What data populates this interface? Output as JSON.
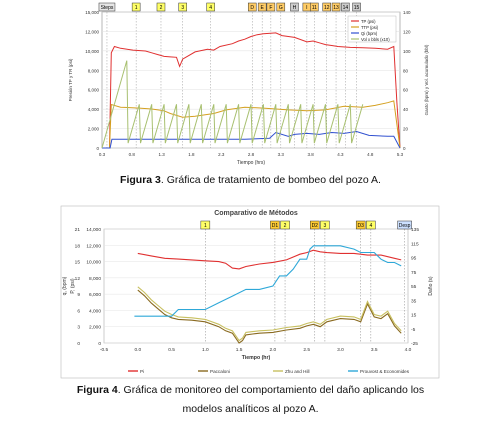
{
  "figure3": {
    "caption_label": "Figura 3",
    "caption_text": ". Gráfica de tratamiento de bombeo del pozo A.",
    "stage_markers": [
      {
        "label": "Steps",
        "color": "#e6e6e6",
        "x": 0.28
      },
      {
        "label": "1",
        "color": "#ffff66",
        "x": 0.75
      },
      {
        "label": "2",
        "color": "#ffff66",
        "x": 1.15
      },
      {
        "label": "3",
        "color": "#ffff66",
        "x": 1.5
      },
      {
        "label": "4",
        "color": "#ffff66",
        "x": 1.95
      },
      {
        "label": "D",
        "color": "#ffcc66",
        "x": 2.62
      },
      {
        "label": "E",
        "color": "#ffcc66",
        "x": 2.78
      },
      {
        "label": "F",
        "color": "#ffcc66",
        "x": 2.92
      },
      {
        "label": "G",
        "color": "#ffcc66",
        "x": 3.08
      },
      {
        "label": "H",
        "color": "#cccccc",
        "x": 3.3
      },
      {
        "label": "I",
        "color": "#ffcc66",
        "x": 3.5
      },
      {
        "label": "11",
        "color": "#ffcc66",
        "x": 3.62
      },
      {
        "label": "12",
        "color": "#ffcc66",
        "x": 3.82
      },
      {
        "label": "13",
        "color": "#ffcc66",
        "x": 3.97
      },
      {
        "label": "14",
        "color": "#cccccc",
        "x": 4.12
      },
      {
        "label": "15",
        "color": "#cccccc",
        "x": 4.3
      }
    ],
    "legend": [
      "TP (psi)",
      "TTP (psi)",
      "Qi (bpm)",
      "Vol x bbls (x10)"
    ],
    "chart_data": {
      "type": "line",
      "xlabel": "Tiempo (hrs)",
      "ylabel_left": "Presión TP y TR (psi)",
      "ylabel_right": "Gasto (bpm) y Vol. acumulado (bbl)",
      "xlim": [
        0.2,
        5.0
      ],
      "ylim_left": [
        0,
        15000
      ],
      "ylim_right": [
        0,
        140
      ],
      "xticks": [
        "0.3",
        "0.8",
        "1.3",
        "1.8",
        "2.3",
        "2.8",
        "3.3",
        "3.8",
        "4.3",
        "4.8",
        "5.3"
      ],
      "yticks_left": [
        "0",
        "2,000",
        "4,000",
        "6,000",
        "8,000",
        "10,000",
        "12,000",
        "15,000"
      ],
      "yticks_right": [
        "0",
        "20",
        "40",
        "60",
        "80",
        "100",
        "120",
        "140"
      ],
      "series": [
        {
          "name": "TP (psi)",
          "color": "#e03030",
          "axis": "left",
          "x": [
            0.2,
            0.32,
            0.35,
            0.4,
            0.5,
            0.7,
            0.9,
            1.0,
            1.1,
            1.2,
            1.3,
            1.4,
            1.45,
            1.5,
            1.7,
            1.9,
            2.0,
            2.1,
            2.3,
            2.4,
            2.5,
            2.6,
            2.7,
            2.8,
            3.0,
            3.1,
            3.2,
            3.3,
            3.5,
            3.6,
            3.7,
            3.8,
            3.9,
            4.0,
            4.2,
            4.4,
            4.6,
            4.8,
            4.9,
            4.95,
            5.0
          ],
          "y": [
            0,
            0,
            10500,
            11200,
            11000,
            10800,
            10700,
            10500,
            10300,
            10100,
            10050,
            10000,
            9000,
            9800,
            10600,
            10900,
            10800,
            11200,
            11500,
            11800,
            12000,
            12300,
            12500,
            12600,
            12700,
            12400,
            12300,
            12200,
            11700,
            11800,
            11600,
            11400,
            11300,
            11200,
            11100,
            11050,
            11000,
            10900,
            11200,
            5000,
            0
          ]
        },
        {
          "name": "TTP (psi)",
          "color": "#d4a020",
          "axis": "left",
          "x": [
            0.2,
            0.32,
            0.35,
            0.5,
            0.8,
            1.0,
            1.1,
            1.2,
            1.3,
            1.4,
            1.5,
            1.7,
            2.0,
            2.2,
            2.5,
            2.8,
            3.0,
            3.2,
            3.5,
            3.8,
            4.1,
            4.4,
            4.6,
            4.8,
            4.9,
            5.0
          ],
          "y": [
            0,
            0,
            4800,
            4500,
            4400,
            4300,
            4200,
            4100,
            3800,
            3600,
            3400,
            3500,
            3800,
            4200,
            4500,
            4400,
            4300,
            4200,
            4100,
            4200,
            4600,
            4500,
            4700,
            5000,
            5200,
            0
          ]
        },
        {
          "name": "Qi (bpm)",
          "color": "#3050d0",
          "axis": "right",
          "x": [
            0.2,
            0.33,
            0.36,
            0.5,
            1.0,
            1.5,
            2.0,
            2.5,
            2.9,
            3.0,
            3.2,
            3.3,
            3.5,
            3.7,
            3.9,
            4.1,
            4.3,
            4.5,
            4.8,
            4.9,
            5.0
          ],
          "y": [
            0,
            0,
            9,
            9,
            9,
            9,
            9,
            9,
            10,
            16,
            12,
            14,
            15,
            14,
            16,
            15,
            17,
            13,
            12,
            12,
            0
          ]
        },
        {
          "name": "Vol x bbls (x10)",
          "color": "#a8c070",
          "axis": "right",
          "x": [
            0.2,
            0.4,
            0.6,
            0.62,
            0.8,
            0.82,
            1.0,
            1.02,
            1.2,
            1.22,
            1.4,
            1.42,
            1.6,
            1.62,
            1.8,
            1.82,
            2.0,
            2.02,
            2.2,
            2.22,
            2.4,
            2.42,
            2.6,
            2.62,
            2.8,
            2.82,
            3.0,
            3.02,
            3.2,
            3.22,
            3.4,
            3.42,
            3.6,
            3.62,
            3.8,
            3.82,
            4.0,
            4.02,
            4.2,
            4.22,
            4.4
          ],
          "y": [
            0,
            45,
            90,
            5,
            45,
            5,
            45,
            5,
            45,
            5,
            45,
            5,
            45,
            5,
            45,
            5,
            45,
            5,
            45,
            5,
            45,
            5,
            45,
            5,
            45,
            5,
            45,
            5,
            45,
            5,
            45,
            5,
            45,
            5,
            45,
            5,
            45,
            5,
            45,
            5,
            45
          ]
        }
      ]
    }
  },
  "figure4": {
    "caption_label": "Figura 4",
    "caption_text": ". Gráfica de monitoreo del comportamiento del daño aplicando los",
    "caption_line2": "modelos analíticos al pozo A.",
    "stage_markers": [
      {
        "label": "1",
        "color": "#ffff66",
        "x": 1.0
      },
      {
        "label": "D1",
        "color": "#ffcc33",
        "x": 2.03
      },
      {
        "label": "2",
        "color": "#ffff66",
        "x": 2.18
      },
      {
        "label": "D2",
        "color": "#ffcc33",
        "x": 2.62
      },
      {
        "label": "3",
        "color": "#ffff66",
        "x": 2.77
      },
      {
        "label": "D3",
        "color": "#ffcc33",
        "x": 3.3
      },
      {
        "label": "4",
        "color": "#ffff66",
        "x": 3.45
      },
      {
        "label": "Desp",
        "color": "#cce0ff",
        "x": 3.95
      }
    ],
    "chart_data": {
      "type": "line",
      "title": "Comparativo de Métodos",
      "xlabel": "Tiempo (hr)",
      "ylabel_q": "q, (bpm)",
      "ylabel_p": "P, (psi)",
      "ylabel_right": "Daño (s)",
      "xlim": [
        -0.5,
        4.0
      ],
      "ylim_left": [
        0,
        14000
      ],
      "ylim_right": [
        -25,
        145
      ],
      "xticks": [
        "-0.5",
        "0.0",
        "0.5",
        "1.0",
        "1.5",
        "2.0",
        "2.5",
        "3.0",
        "3.5",
        "4.0"
      ],
      "yticks_p": [
        "0",
        "2,000",
        "4,000",
        "6,000",
        "8,000",
        "10,000",
        "12,000",
        "14,000"
      ],
      "yticks_q": [
        "0",
        "3",
        "6",
        "9",
        "12",
        "15",
        "18",
        "21"
      ],
      "yticks_right": [
        "-25",
        "-5",
        "15",
        "35",
        "55",
        "75",
        "95",
        "115",
        "135"
      ],
      "legend": [
        "Pi",
        "Paccaloni",
        "Zhu and Hill",
        "Prouvost & Economides"
      ],
      "series": [
        {
          "name": "Pi",
          "color": "#e03030",
          "axis": "left",
          "x": [
            0.0,
            0.2,
            0.4,
            0.6,
            0.8,
            1.0,
            1.2,
            1.3,
            1.4,
            1.5,
            1.6,
            1.8,
            2.0,
            2.2,
            2.4,
            2.5,
            2.6,
            2.7,
            2.8,
            3.0,
            3.2,
            3.4,
            3.6,
            3.8,
            3.9
          ],
          "y": [
            11000,
            10700,
            10400,
            10300,
            10200,
            10100,
            10000,
            9800,
            9200,
            9100,
            9400,
            9700,
            9900,
            10200,
            10900,
            11100,
            11400,
            11200,
            11100,
            11000,
            11000,
            10800,
            10800,
            10400,
            10200
          ]
        },
        {
          "name": "Paccaloni",
          "color": "#8a6a20",
          "axis": "left",
          "x": [
            0.0,
            0.1,
            0.2,
            0.3,
            0.4,
            0.5,
            0.6,
            0.8,
            1.0,
            1.2,
            1.3,
            1.4,
            1.5,
            1.55,
            1.6,
            1.7,
            1.8,
            2.0,
            2.2,
            2.4,
            2.5,
            2.6,
            2.7,
            2.8,
            3.0,
            3.2,
            3.3,
            3.4,
            3.5,
            3.6,
            3.7,
            3.8,
            3.9
          ],
          "y": [
            6500,
            5800,
            4900,
            4200,
            3500,
            3100,
            2900,
            2800,
            2600,
            2000,
            1500,
            1200,
            0,
            300,
            1000,
            1100,
            1200,
            1300,
            1600,
            1800,
            2100,
            2300,
            2000,
            2600,
            3000,
            2900,
            2600,
            4800,
            3200,
            3000,
            3600,
            2100,
            1200
          ]
        },
        {
          "name": "Zhu and Hill",
          "color": "#c8c060",
          "axis": "left",
          "x": [
            0.0,
            0.1,
            0.2,
            0.3,
            0.4,
            0.5,
            0.6,
            0.8,
            1.0,
            1.2,
            1.3,
            1.4,
            1.5,
            1.55,
            1.6,
            1.7,
            1.8,
            2.0,
            2.2,
            2.4,
            2.5,
            2.6,
            2.7,
            2.8,
            3.0,
            3.2,
            3.3,
            3.4,
            3.5,
            3.6,
            3.7,
            3.8,
            3.9
          ],
          "y": [
            6900,
            6200,
            5300,
            4600,
            3900,
            3500,
            3200,
            3100,
            2900,
            2300,
            1800,
            1500,
            300,
            600,
            1300,
            1400,
            1500,
            1600,
            1900,
            2100,
            2400,
            2600,
            2300,
            2900,
            3300,
            3200,
            2900,
            5100,
            3500,
            3300,
            3900,
            2400,
            1500
          ]
        },
        {
          "name": "Prouvost & Economides",
          "color": "#2ea8d8",
          "axis": "right",
          "x": [
            -0.05,
            0.0,
            0.5,
            0.6,
            1.0,
            1.2,
            1.4,
            1.6,
            1.8,
            2.0,
            2.1,
            2.2,
            2.3,
            2.4,
            2.5,
            2.55,
            2.6,
            2.8,
            3.0,
            3.2,
            3.3,
            3.5,
            3.6,
            3.7,
            3.8,
            3.9
          ],
          "y": [
            15,
            15,
            15,
            25,
            25,
            35,
            45,
            55,
            55,
            60,
            75,
            75,
            85,
            100,
            100,
            115,
            120,
            120,
            120,
            115,
            110,
            110,
            100,
            95,
            95,
            90
          ]
        }
      ]
    }
  }
}
